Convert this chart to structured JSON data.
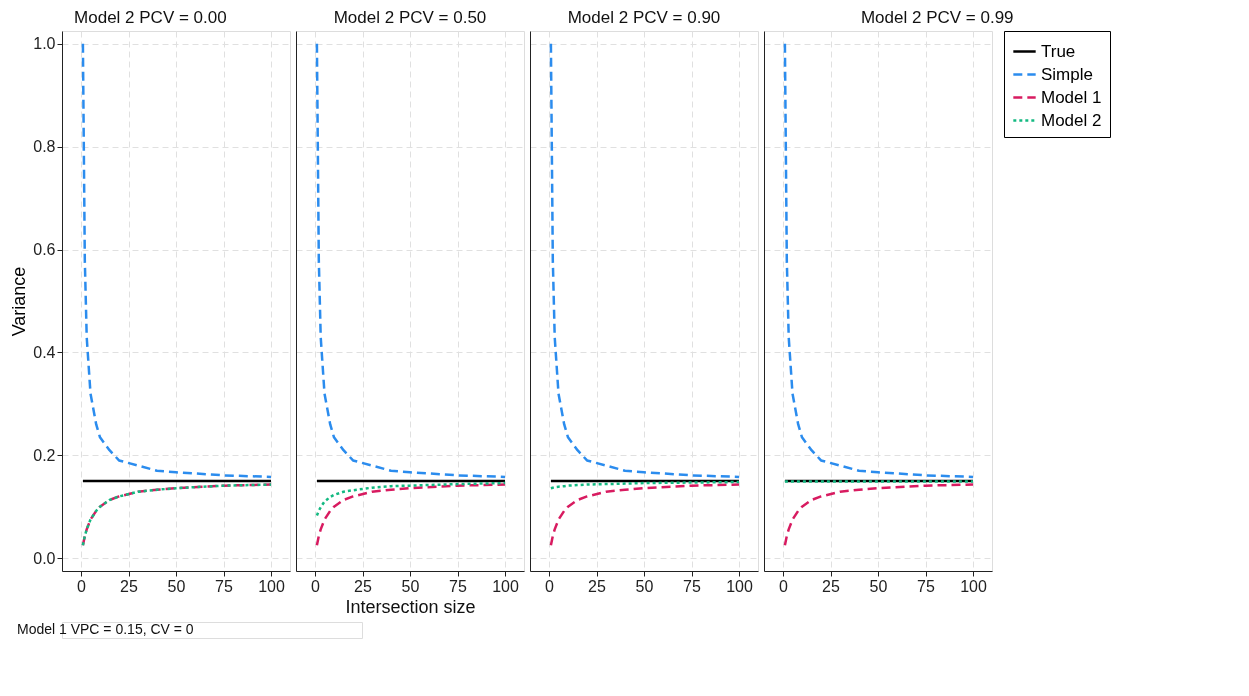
{
  "chart_data": [
    {
      "type": "line",
      "title": "Model 2 PCV = 0.00",
      "ylabel": "Variance",
      "annotations": [
        "Model 1 VPC = 0.15, CV = 0"
      ],
      "x": [
        1,
        2,
        3,
        5,
        8,
        10,
        15,
        20,
        30,
        40,
        50,
        75,
        100
      ],
      "xlim": [
        -10,
        110
      ],
      "xticks": [
        0,
        25,
        50,
        75,
        100
      ],
      "ylim": [
        -0.025,
        1.025
      ],
      "yticks": [
        {
          "value": 0,
          "label": "0.0"
        },
        0.2,
        0.4,
        0.6,
        0.8,
        {
          "value": 1,
          "label": "1.0"
        }
      ],
      "grid": true,
      "series": [
        {
          "color": "#000000",
          "line_style": "solid",
          "values": [
            0.15,
            0.15,
            0.15,
            0.15,
            0.15,
            0.15,
            0.15,
            0.15,
            0.15,
            0.15,
            0.15,
            0.15,
            0.15
          ]
        },
        {
          "color": "#2b8cee",
          "line_style": "dashed",
          "values": [
            1.0,
            0.58,
            0.43,
            0.32,
            0.26,
            0.235,
            0.21,
            0.19,
            0.18,
            0.17,
            0.167,
            0.161,
            0.158
          ]
        },
        {
          "color": "#d81b60",
          "line_style": "dashed",
          "values": [
            0.025,
            0.043,
            0.056,
            0.075,
            0.092,
            0.1,
            0.113,
            0.12,
            0.129,
            0.133,
            0.136,
            0.141,
            0.143
          ]
        },
        {
          "color": "#13b981",
          "line_style": "dotted",
          "values": [
            0.025,
            0.043,
            0.056,
            0.075,
            0.092,
            0.1,
            0.113,
            0.12,
            0.129,
            0.133,
            0.136,
            0.141,
            0.143
          ]
        }
      ]
    },
    {
      "type": "line",
      "title": "Model 2 PCV = 0.50",
      "xlabel": "Intersection size",
      "x": [
        1,
        2,
        3,
        5,
        8,
        10,
        15,
        20,
        30,
        40,
        50,
        75,
        100
      ],
      "xlim": [
        -10,
        110
      ],
      "xticks": [
        0,
        25,
        50,
        75,
        100
      ],
      "ylim": [
        -0.025,
        1.025
      ],
      "yticks": [
        {
          "value": 0,
          "label": null
        },
        {
          "value": 0.2,
          "label": null
        },
        {
          "value": 0.4,
          "label": null
        },
        {
          "value": 0.6,
          "label": null
        },
        {
          "value": 0.8,
          "label": null
        },
        {
          "value": 1,
          "label": null
        }
      ],
      "tick_labels": "x",
      "grid": true,
      "series": [
        {
          "color": "#000000",
          "line_style": "solid",
          "values": [
            0.15,
            0.15,
            0.15,
            0.15,
            0.15,
            0.15,
            0.15,
            0.15,
            0.15,
            0.15,
            0.15,
            0.15,
            0.15
          ]
        },
        {
          "color": "#2b8cee",
          "line_style": "dashed",
          "values": [
            1.0,
            0.58,
            0.43,
            0.32,
            0.26,
            0.235,
            0.21,
            0.19,
            0.18,
            0.17,
            0.167,
            0.161,
            0.158
          ]
        },
        {
          "color": "#d81b60",
          "line_style": "dashed",
          "values": [
            0.025,
            0.043,
            0.056,
            0.075,
            0.092,
            0.1,
            0.113,
            0.12,
            0.129,
            0.133,
            0.136,
            0.141,
            0.143
          ]
        },
        {
          "color": "#13b981",
          "line_style": "dotted",
          "values": [
            0.083,
            0.092,
            0.099,
            0.11,
            0.119,
            0.123,
            0.129,
            0.132,
            0.137,
            0.14,
            0.141,
            0.144,
            0.146
          ]
        }
      ]
    },
    {
      "type": "line",
      "title": "Model 2 PCV = 0.90",
      "x": [
        1,
        2,
        3,
        5,
        8,
        10,
        15,
        20,
        30,
        40,
        50,
        75,
        100
      ],
      "xlim": [
        -10,
        110
      ],
      "xticks": [
        0,
        25,
        50,
        75,
        100
      ],
      "ylim": [
        -0.025,
        1.025
      ],
      "yticks": [
        {
          "value": 0,
          "label": null
        },
        {
          "value": 0.2,
          "label": null
        },
        {
          "value": 0.4,
          "label": null
        },
        {
          "value": 0.6,
          "label": null
        },
        {
          "value": 0.8,
          "label": null
        },
        {
          "value": 1,
          "label": null
        }
      ],
      "tick_labels": "x",
      "grid": true,
      "series": [
        {
          "color": "#000000",
          "line_style": "solid",
          "values": [
            0.15,
            0.15,
            0.15,
            0.15,
            0.15,
            0.15,
            0.15,
            0.15,
            0.15,
            0.15,
            0.15,
            0.15,
            0.15
          ]
        },
        {
          "color": "#2b8cee",
          "line_style": "dashed",
          "values": [
            1.0,
            0.58,
            0.43,
            0.32,
            0.26,
            0.235,
            0.21,
            0.19,
            0.18,
            0.17,
            0.167,
            0.161,
            0.158
          ]
        },
        {
          "color": "#d81b60",
          "line_style": "dashed",
          "values": [
            0.025,
            0.043,
            0.056,
            0.075,
            0.092,
            0.1,
            0.113,
            0.12,
            0.129,
            0.133,
            0.136,
            0.141,
            0.143
          ]
        },
        {
          "color": "#13b981",
          "line_style": "dotted",
          "values": [
            0.136,
            0.137,
            0.138,
            0.139,
            0.14,
            0.141,
            0.142,
            0.143,
            0.144,
            0.145,
            0.146,
            0.147,
            0.148
          ]
        }
      ]
    },
    {
      "type": "line",
      "title": "Model 2 PCV = 0.99",
      "x": [
        1,
        2,
        3,
        5,
        8,
        10,
        15,
        20,
        30,
        40,
        50,
        75,
        100
      ],
      "xlim": [
        -10,
        110
      ],
      "xticks": [
        0,
        25,
        50,
        75,
        100
      ],
      "ylim": [
        -0.025,
        1.025
      ],
      "yticks": [
        {
          "value": 0,
          "label": null
        },
        {
          "value": 0.2,
          "label": null
        },
        {
          "value": 0.4,
          "label": null
        },
        {
          "value": 0.6,
          "label": null
        },
        {
          "value": 0.8,
          "label": null
        },
        {
          "value": 1,
          "label": null
        }
      ],
      "tick_labels": "x",
      "grid": true,
      "legend": "right",
      "series": [
        {
          "name": "True",
          "color": "#000000",
          "line_style": "solid",
          "values": [
            0.15,
            0.15,
            0.15,
            0.15,
            0.15,
            0.15,
            0.15,
            0.15,
            0.15,
            0.15,
            0.15,
            0.15,
            0.15
          ]
        },
        {
          "name": "Simple",
          "color": "#2b8cee",
          "line_style": "dashed",
          "values": [
            1.0,
            0.58,
            0.43,
            0.32,
            0.26,
            0.235,
            0.21,
            0.19,
            0.18,
            0.17,
            0.167,
            0.161,
            0.158
          ]
        },
        {
          "name": "Model 1",
          "color": "#d81b60",
          "line_style": "dashed",
          "values": [
            0.025,
            0.043,
            0.056,
            0.075,
            0.092,
            0.1,
            0.113,
            0.12,
            0.129,
            0.133,
            0.136,
            0.141,
            0.143
          ]
        },
        {
          "name": "Model 2",
          "color": "#13b981",
          "line_style": "dotted",
          "values": [
            0.149,
            0.149,
            0.149,
            0.149,
            0.149,
            0.149,
            0.149,
            0.149,
            0.149,
            0.149,
            0.149,
            0.149,
            0.149
          ]
        }
      ]
    }
  ]
}
